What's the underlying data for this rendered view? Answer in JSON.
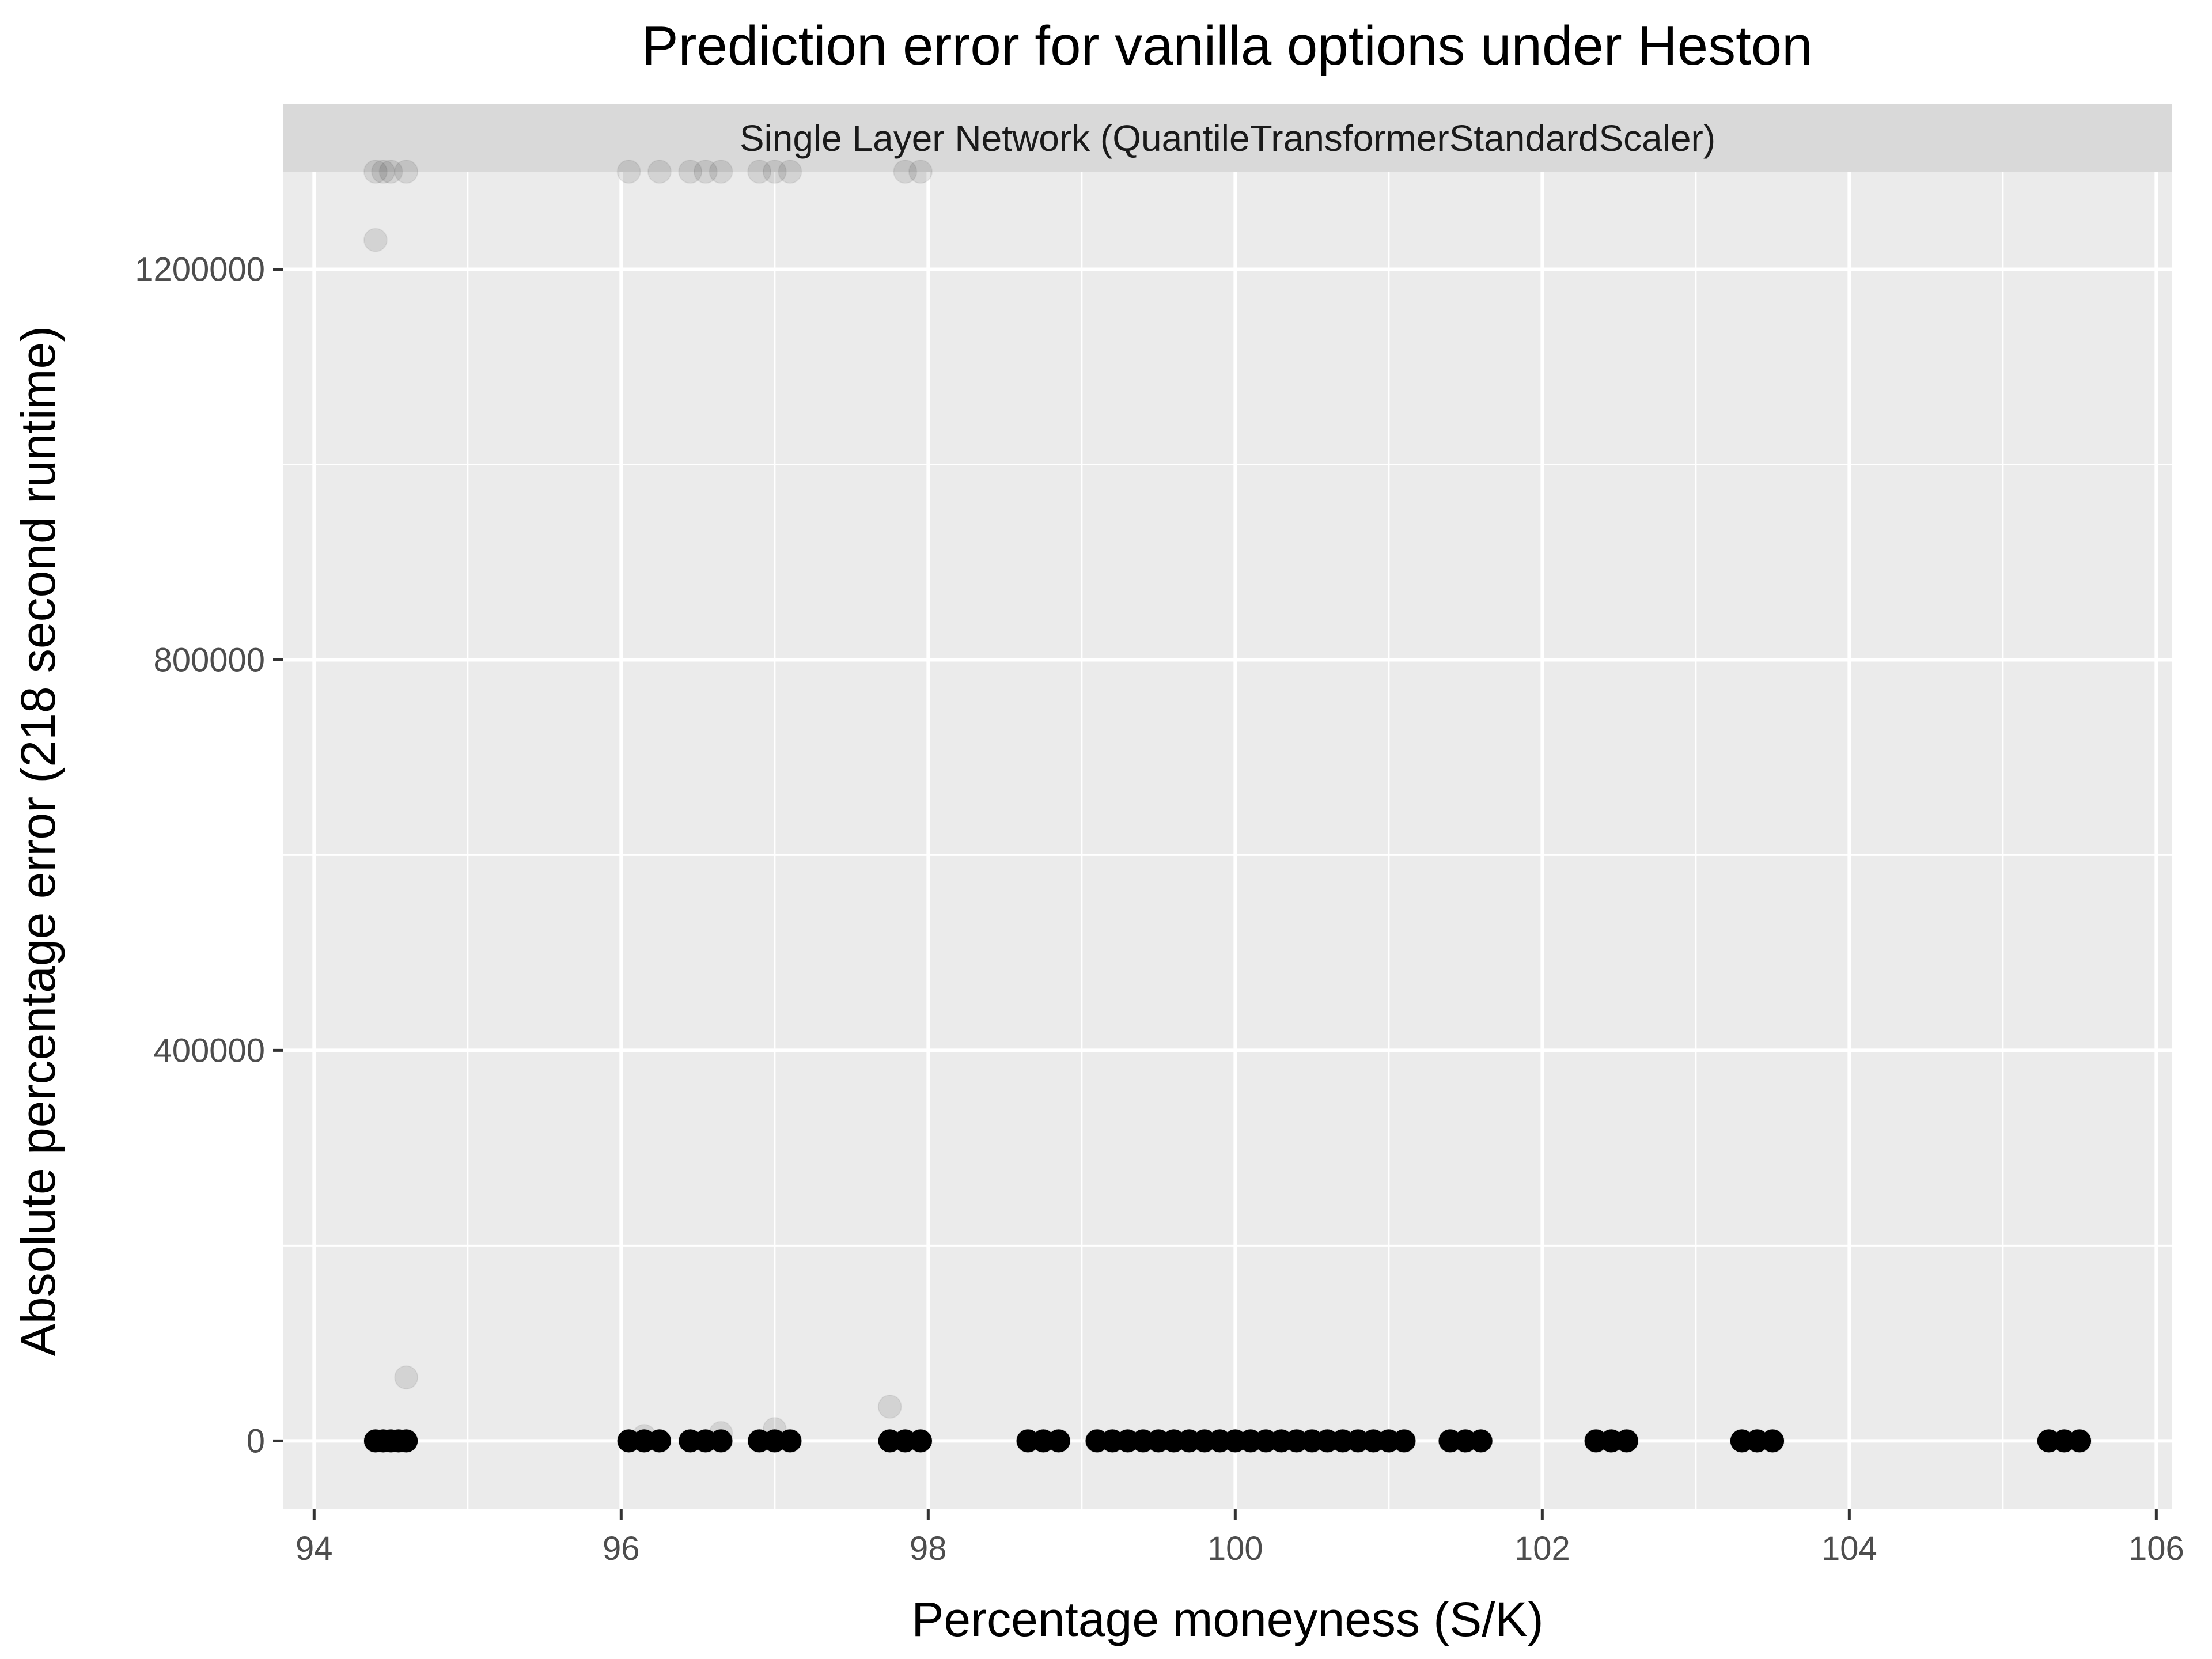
{
  "chart_data": {
    "type": "scatter",
    "title": "Prediction error for vanilla options under Heston",
    "facet_label": "Single Layer Network (QuantileTransformerStandardScaler)",
    "xlabel": "Percentage moneyness (S/K)",
    "ylabel": "Absolute percentage error (218 second runtime)",
    "xlim": [
      93.8,
      106.1
    ],
    "ylim": [
      -70000,
      1300000
    ],
    "x_ticks": [
      94,
      96,
      98,
      100,
      102,
      104,
      106
    ],
    "y_ticks": [
      0,
      400000,
      800000,
      1200000
    ],
    "x_tick_labels": [
      "94",
      "96",
      "98",
      "100",
      "102",
      "104",
      "106"
    ],
    "y_tick_labels": [
      "0",
      "400000",
      "800000",
      "1200000"
    ],
    "grid": true,
    "panel_background": "#ebebeb",
    "strip_background": "#d9d9d9",
    "point_color": "#000000",
    "point_opacity": 0.1,
    "x_cap": 1300000,
    "series": [
      {
        "points": [
          [
            94.4,
            0
          ],
          [
            94.45,
            0
          ],
          [
            94.5,
            0
          ],
          [
            94.55,
            0
          ],
          [
            94.6,
            0
          ],
          [
            94.4,
            1300000
          ],
          [
            94.45,
            1300000
          ],
          [
            94.5,
            1300000
          ],
          [
            94.6,
            1300000
          ],
          [
            94.4,
            1230000
          ],
          [
            94.6,
            65000
          ],
          [
            96.05,
            0
          ],
          [
            96.15,
            0
          ],
          [
            96.25,
            0
          ],
          [
            96.05,
            1300000
          ],
          [
            96.25,
            1300000
          ],
          [
            96.15,
            5000
          ],
          [
            96.45,
            0
          ],
          [
            96.55,
            0
          ],
          [
            96.65,
            0
          ],
          [
            96.45,
            1300000
          ],
          [
            96.55,
            1300000
          ],
          [
            96.65,
            1300000
          ],
          [
            96.65,
            8000
          ],
          [
            96.9,
            0
          ],
          [
            97.0,
            0
          ],
          [
            97.1,
            0
          ],
          [
            96.9,
            1300000
          ],
          [
            97.0,
            1300000
          ],
          [
            97.1,
            1300000
          ],
          [
            97.0,
            12000
          ],
          [
            97.75,
            0
          ],
          [
            97.85,
            0
          ],
          [
            97.95,
            0
          ],
          [
            97.85,
            1300000
          ],
          [
            97.95,
            1300000
          ],
          [
            97.75,
            35000
          ],
          [
            98.65,
            0
          ],
          [
            98.75,
            0
          ],
          [
            98.85,
            0
          ],
          [
            99.1,
            0
          ],
          [
            99.2,
            0
          ],
          [
            99.3,
            0
          ],
          [
            99.4,
            0
          ],
          [
            99.5,
            0
          ],
          [
            99.6,
            0
          ],
          [
            99.7,
            0
          ],
          [
            99.8,
            0
          ],
          [
            99.9,
            0
          ],
          [
            100.0,
            0
          ],
          [
            100.1,
            0
          ],
          [
            100.2,
            0
          ],
          [
            100.3,
            0
          ],
          [
            100.4,
            0
          ],
          [
            100.5,
            0
          ],
          [
            100.6,
            0
          ],
          [
            100.7,
            0
          ],
          [
            100.8,
            0
          ],
          [
            100.9,
            0
          ],
          [
            101.0,
            0
          ],
          [
            101.1,
            0
          ],
          [
            101.4,
            0
          ],
          [
            101.5,
            0
          ],
          [
            101.6,
            0
          ],
          [
            102.35,
            0
          ],
          [
            102.45,
            0
          ],
          [
            102.55,
            0
          ],
          [
            103.3,
            0
          ],
          [
            103.4,
            0
          ],
          [
            103.5,
            0
          ],
          [
            105.3,
            0
          ],
          [
            105.4,
            0
          ],
          [
            105.5,
            0
          ]
        ]
      }
    ]
  }
}
